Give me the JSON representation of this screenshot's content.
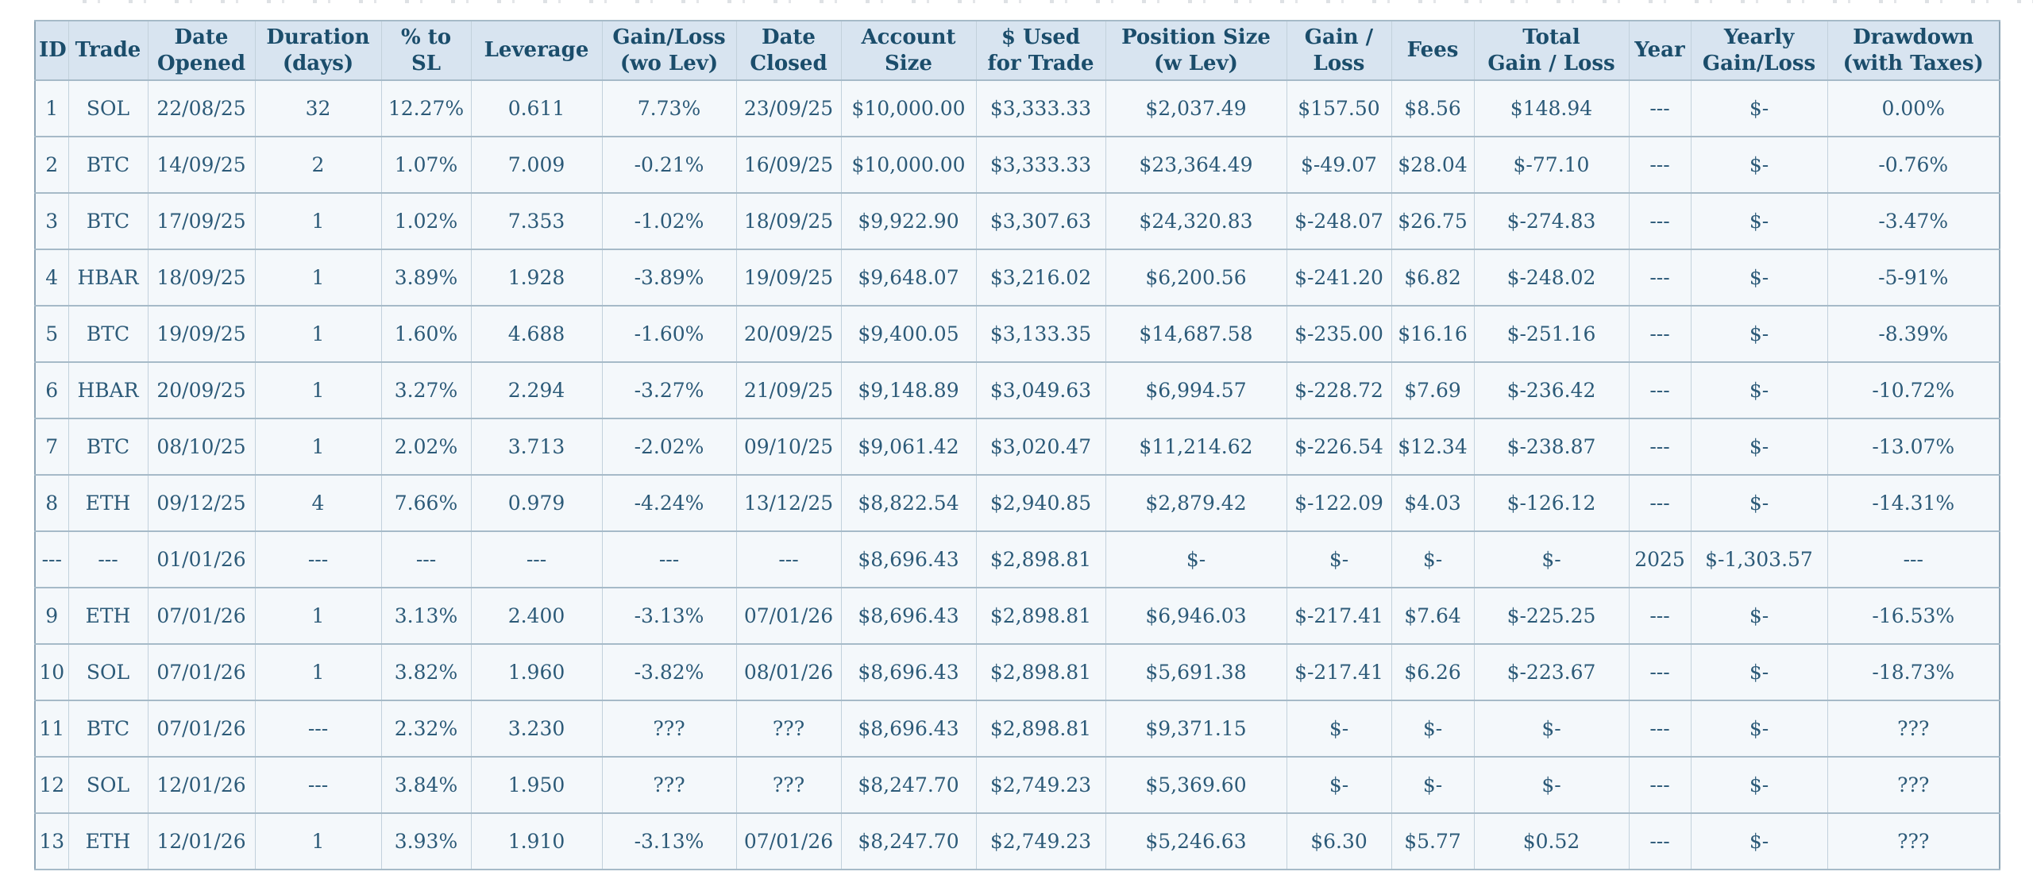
{
  "table": {
    "headers": [
      "ID",
      "Trade",
      "Date\nOpened",
      "Duration\n(days)",
      "% to\nSL",
      "Leverage",
      "Gain/Loss\n(wo Lev)",
      "Date\nClosed",
      "Account\nSize",
      "$ Used\nfor Trade",
      "Position Size\n(w Lev)",
      "Gain /\nLoss",
      "Fees",
      "Total\nGain / Loss",
      "Year",
      "Yearly\nGain/Loss",
      "Drawdown\n(with Taxes)"
    ],
    "rows": [
      [
        "1",
        "SOL",
        "22/08/25",
        "32",
        "12.27%",
        "0.611",
        "7.73%",
        "23/09/25",
        "$10,000.00",
        "$3,333.33",
        "$2,037.49",
        "$157.50",
        "$8.56",
        "$148.94",
        "---",
        "$-",
        "0.00%"
      ],
      [
        "2",
        "BTC",
        "14/09/25",
        "2",
        "1.07%",
        "7.009",
        "-0.21%",
        "16/09/25",
        "$10,000.00",
        "$3,333.33",
        "$23,364.49",
        "$-49.07",
        "$28.04",
        "$-77.10",
        "---",
        "$-",
        "-0.76%"
      ],
      [
        "3",
        "BTC",
        "17/09/25",
        "1",
        "1.02%",
        "7.353",
        "-1.02%",
        "18/09/25",
        "$9,922.90",
        "$3,307.63",
        "$24,320.83",
        "$-248.07",
        "$26.75",
        "$-274.83",
        "---",
        "$-",
        "-3.47%"
      ],
      [
        "4",
        "HBAR",
        "18/09/25",
        "1",
        "3.89%",
        "1.928",
        "-3.89%",
        "19/09/25",
        "$9,648.07",
        "$3,216.02",
        "$6,200.56",
        "$-241.20",
        "$6.82",
        "$-248.02",
        "---",
        "$-",
        "-5-91%"
      ],
      [
        "5",
        "BTC",
        "19/09/25",
        "1",
        "1.60%",
        "4.688",
        "-1.60%",
        "20/09/25",
        "$9,400.05",
        "$3,133.35",
        "$14,687.58",
        "$-235.00",
        "$16.16",
        "$-251.16",
        "---",
        "$-",
        "-8.39%"
      ],
      [
        "6",
        "HBAR",
        "20/09/25",
        "1",
        "3.27%",
        "2.294",
        "-3.27%",
        "21/09/25",
        "$9,148.89",
        "$3,049.63",
        "$6,994.57",
        "$-228.72",
        "$7.69",
        "$-236.42",
        "---",
        "$-",
        "-10.72%"
      ],
      [
        "7",
        "BTC",
        "08/10/25",
        "1",
        "2.02%",
        "3.713",
        "-2.02%",
        "09/10/25",
        "$9,061.42",
        "$3,020.47",
        "$11,214.62",
        "$-226.54",
        "$12.34",
        "$-238.87",
        "---",
        "$-",
        "-13.07%"
      ],
      [
        "8",
        "ETH",
        "09/12/25",
        "4",
        "7.66%",
        "0.979",
        "-4.24%",
        "13/12/25",
        "$8,822.54",
        "$2,940.85",
        "$2,879.42",
        "$-122.09",
        "$4.03",
        "$-126.12",
        "---",
        "$-",
        "-14.31%"
      ],
      [
        "---",
        "---",
        "01/01/26",
        "---",
        "---",
        "---",
        "---",
        "---",
        "$8,696.43",
        "$2,898.81",
        "$-",
        "$-",
        "$-",
        "$-",
        "2025",
        "$-1,303.57",
        "---"
      ],
      [
        "9",
        "ETH",
        "07/01/26",
        "1",
        "3.13%",
        "2.400",
        "-3.13%",
        "07/01/26",
        "$8,696.43",
        "$2,898.81",
        "$6,946.03",
        "$-217.41",
        "$7.64",
        "$-225.25",
        "---",
        "$-",
        "-16.53%"
      ],
      [
        "10",
        "SOL",
        "07/01/26",
        "1",
        "3.82%",
        "1.960",
        "-3.82%",
        "08/01/26",
        "$8,696.43",
        "$2,898.81",
        "$5,691.38",
        "$-217.41",
        "$6.26",
        "$-223.67",
        "---",
        "$-",
        "-18.73%"
      ],
      [
        "11",
        "BTC",
        "07/01/26",
        "---",
        "2.32%",
        "3.230",
        "???",
        "???",
        "$8,696.43",
        "$2,898.81",
        "$9,371.15",
        "$-",
        "$-",
        "$-",
        "---",
        "$-",
        "???"
      ],
      [
        "12",
        "SOL",
        "12/01/26",
        "---",
        "3.84%",
        "1.950",
        "???",
        "???",
        "$8,247.70",
        "$2,749.23",
        "$5,369.60",
        "$-",
        "$-",
        "$-",
        "---",
        "$-",
        "???"
      ],
      [
        "13",
        "ETH",
        "12/01/26",
        "1",
        "3.93%",
        "1.910",
        "-3.13%",
        "07/01/26",
        "$8,247.70",
        "$2,749.23",
        "$5,246.63",
        "$6.30",
        "$5.77",
        "$0.52",
        "---",
        "$-",
        "???"
      ]
    ]
  }
}
